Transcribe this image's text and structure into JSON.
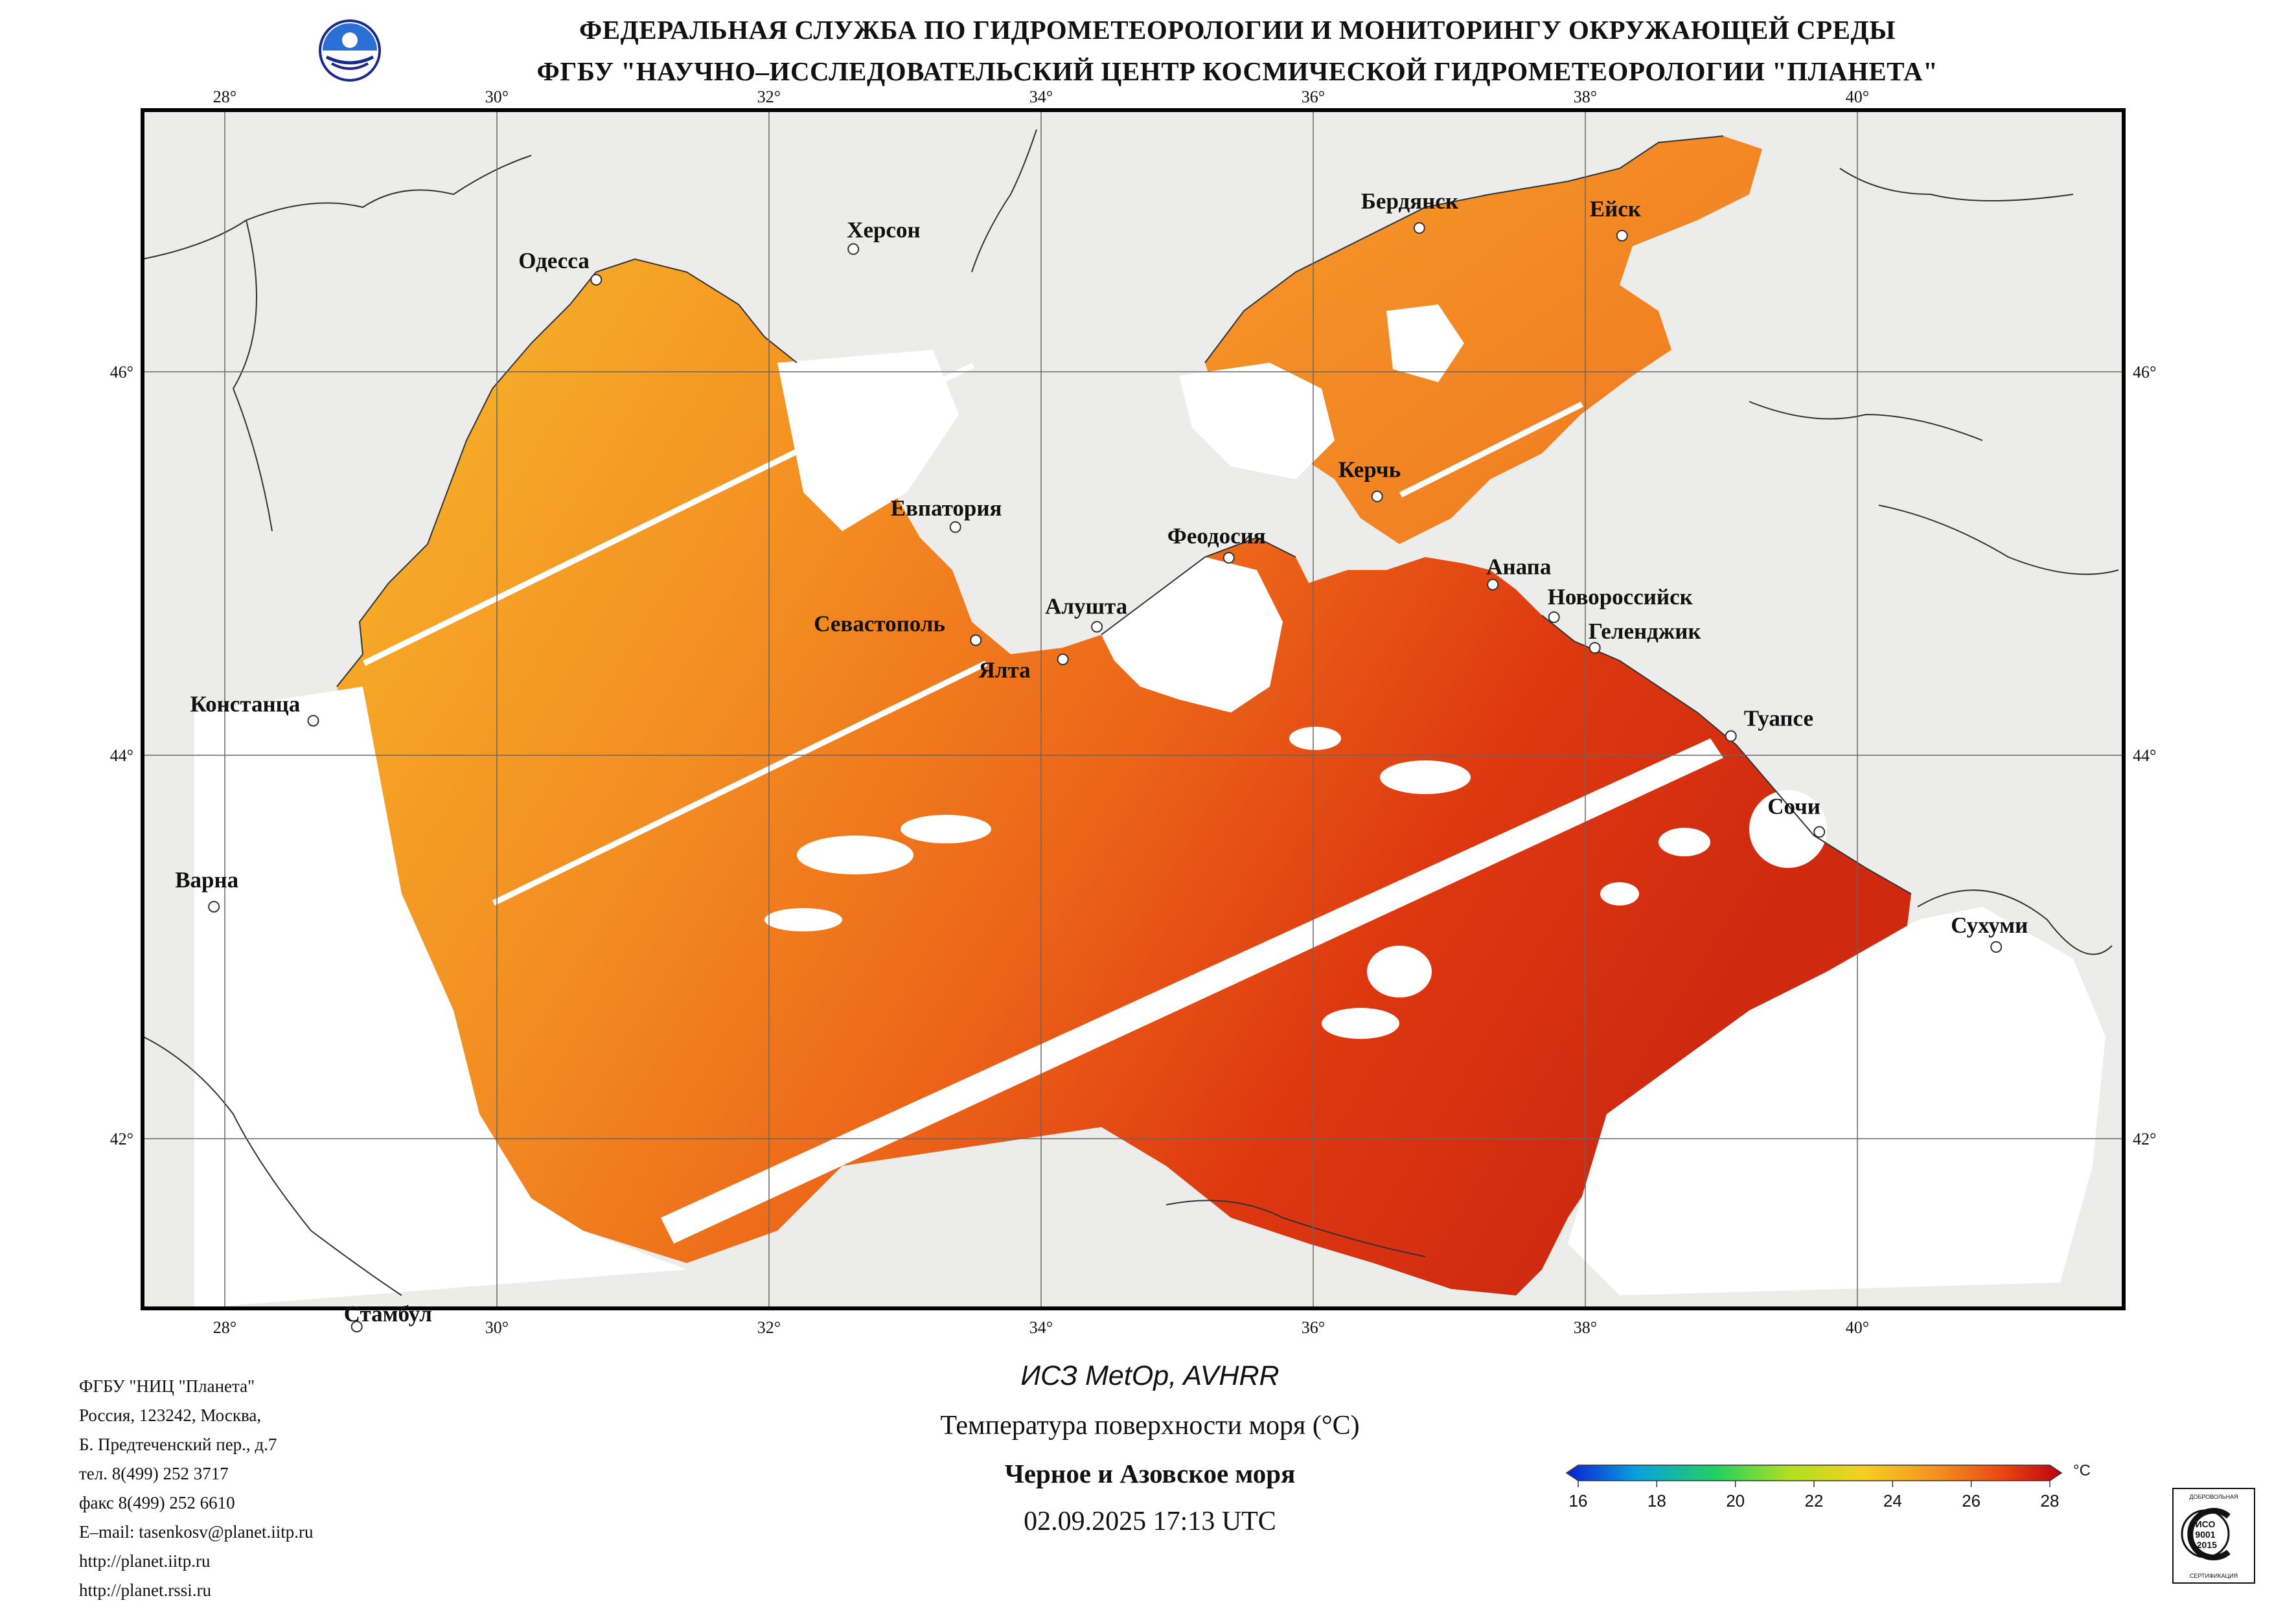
{
  "header": {
    "line1": "ФЕДЕРАЛЬНАЯ СЛУЖБА ПО ГИДРОМЕТЕОРОЛОГИИ И МОНИТОРИНГУ ОКРУЖАЮЩЕЙ СРЕДЫ",
    "line2": "ФГБУ \"НАУЧНО–ИССЛЕДОВАТЕЛЬСКИЙ ЦЕНТР КОСМИЧЕСКОЙ ГИДРОМЕТЕОРОЛОГИИ \"ПЛАНЕТА\""
  },
  "map": {
    "lon_ticks": [
      "28°",
      "30°",
      "32°",
      "34°",
      "36°",
      "38°",
      "40°"
    ],
    "lat_ticks": [
      "46°",
      "44°",
      "42°"
    ],
    "cities": [
      {
        "name": "Одесса",
        "lon": 30.73,
        "lat": 46.48
      },
      {
        "name": "Херсон",
        "lon": 32.62,
        "lat": 46.64
      },
      {
        "name": "Бердянск",
        "lon": 36.78,
        "lat": 46.75
      },
      {
        "name": "Ейск",
        "lon": 38.27,
        "lat": 46.71
      },
      {
        "name": "Евпатория",
        "lon": 33.37,
        "lat": 45.19
      },
      {
        "name": "Феодосия",
        "lon": 35.38,
        "lat": 45.03
      },
      {
        "name": "Керчь",
        "lon": 36.47,
        "lat": 45.35
      },
      {
        "name": "Анапа",
        "lon": 37.32,
        "lat": 44.89
      },
      {
        "name": "Новороссийск",
        "lon": 37.77,
        "lat": 44.72
      },
      {
        "name": "Геленджик",
        "lon": 38.07,
        "lat": 44.56
      },
      {
        "name": "Алушта",
        "lon": 34.41,
        "lat": 44.67
      },
      {
        "name": "Севастополь",
        "lon": 33.52,
        "lat": 44.6
      },
      {
        "name": "Ялта",
        "lon": 34.16,
        "lat": 44.5
      },
      {
        "name": "Констанца",
        "lon": 28.65,
        "lat": 44.18
      },
      {
        "name": "Туапсе",
        "lon": 39.07,
        "lat": 44.1
      },
      {
        "name": "Сочи",
        "lon": 39.72,
        "lat": 43.6
      },
      {
        "name": "Варна",
        "lon": 27.92,
        "lat": 43.21
      },
      {
        "name": "Сухуми",
        "lon": 41.02,
        "lat": 43.0
      },
      {
        "name": "Стамбул",
        "lon": 28.97,
        "lat": 41.02
      }
    ]
  },
  "footer_left": [
    "ФГБУ \"НИЦ \"Планета\"",
    "Россия, 123242, Москва,",
    "Б. Предтеченский пер., д.7",
    "тел. 8(499) 252 3717",
    "факс 8(499) 252 6610",
    "E–mail: tasenkosv@planet.iitp.ru",
    "http://planet.iitp.ru",
    "http://planet.rssi.ru"
  ],
  "info": {
    "satellite": "ИСЗ MetOp, AVHRR",
    "product": "Температура поверхности моря (°C)",
    "region": "Черное и Азовское моря",
    "datetime": "02.09.2025 17:13 UTC"
  },
  "colorbar": {
    "unit": "°C",
    "ticks": [
      "16",
      "18",
      "20",
      "22",
      "24",
      "26",
      "28"
    ],
    "colors": [
      "#0a1fd0",
      "#0aa0e0",
      "#20d060",
      "#b0e020",
      "#f5d020",
      "#f39020",
      "#e84810",
      "#c00010"
    ]
  },
  "iso": {
    "top": "ДОБРОВОЛЬНАЯ",
    "mid1": "ИСО",
    "mid2": "9001",
    "mid3": "-2015",
    "bottom": "СЕРТИФИКАЦИЯ"
  }
}
